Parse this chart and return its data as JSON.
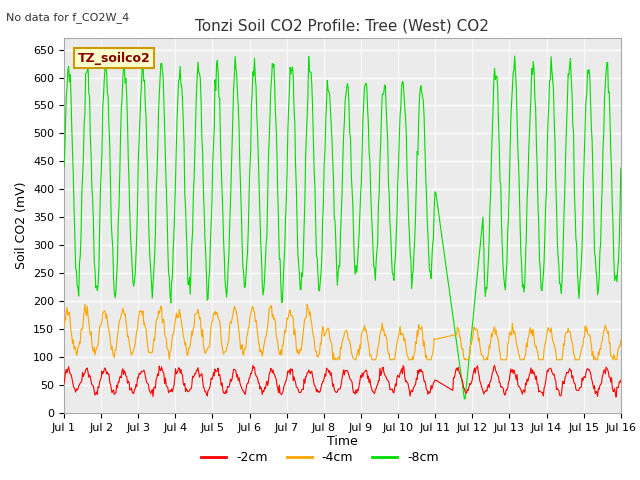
{
  "title": "Tonzi Soil CO2 Profile: Tree (West) CO2",
  "subtitle": "No data for f_CO2W_4",
  "watermark": "TZ_soilco2",
  "ylabel": "Soil CO2 (mV)",
  "xlabel": "Time",
  "ylim": [
    0,
    670
  ],
  "yticks": [
    0,
    50,
    100,
    150,
    200,
    250,
    300,
    350,
    400,
    450,
    500,
    550,
    600,
    650
  ],
  "xtick_labels": [
    "Jul 1",
    "Jul 2",
    "Jul 3",
    "Jul 4",
    "Jul 5",
    "Jul 6",
    "Jul 7",
    "Jul 8",
    "Jul 9",
    "Jul 10",
    "Jul 11",
    "Jul 12",
    "Jul 13",
    "Jul 14",
    "Jul 15",
    "Jul 16"
  ],
  "legend_labels": [
    "-2cm",
    "-4cm",
    "-8cm"
  ],
  "legend_colors": [
    "#ff0000",
    "#ffa500",
    "#00dd00"
  ],
  "line_colors": {
    "2cm": "#ff0000",
    "4cm": "#ffa500",
    "8cm": "#00dd00"
  },
  "bg_color": "#ffffff",
  "plot_bg_color": "#f0f0f0",
  "title_color": "#333333",
  "watermark_bg": "#ffffcc",
  "watermark_border": "#cc9900",
  "n_days": 15,
  "n_points": 720
}
